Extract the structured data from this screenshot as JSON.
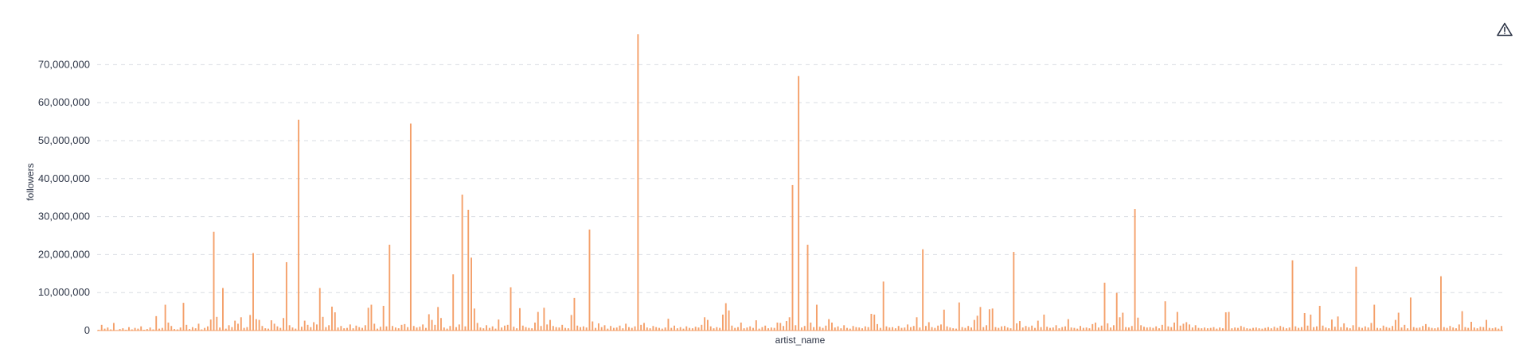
{
  "chart_data": {
    "type": "bar",
    "title": "",
    "xlabel": "artist_name",
    "ylabel": "followers",
    "ylim": [
      0,
      78000000
    ],
    "yticks": [
      0,
      10000000,
      20000000,
      30000000,
      40000000,
      50000000,
      60000000,
      70000000
    ],
    "ytick_labels": [
      "0",
      "10,000,000",
      "20,000,000",
      "30,000,000",
      "40,000,000",
      "50,000,000",
      "60,000,000",
      "70,000,000"
    ],
    "grid": true,
    "bar_color": "#f4a06a",
    "x_tick_labels_shown": false,
    "values": [
      200000,
      1500000,
      500000,
      800000,
      300000,
      2000000,
      100000,
      400000,
      600000,
      200000,
      900000,
      300000,
      700000,
      500000,
      1100000,
      200000,
      400000,
      800000,
      300000,
      3800000,
      500000,
      700000,
      6800000,
      2100000,
      1200000,
      400000,
      300000,
      800000,
      7300000,
      1500000,
      400000,
      900000,
      600000,
      1800000,
      300000,
      700000,
      1100000,
      2900000,
      26000000,
      3600000,
      800000,
      11200000,
      500000,
      1400000,
      900000,
      2600000,
      1800000,
      3500000,
      700000,
      900000,
      4100000,
      20400000,
      3000000,
      2800000,
      1200000,
      600000,
      500000,
      2700000,
      1800000,
      1100000,
      700000,
      3300000,
      18000000,
      1400000,
      800000,
      500000,
      55500000,
      1000000,
      2600000,
      1500000,
      900000,
      2200000,
      1600000,
      11200000,
      3600000,
      900000,
      1400000,
      6300000,
      4800000,
      800000,
      1200000,
      600000,
      700000,
      1600000,
      600000,
      1300000,
      900000,
      700000,
      1400000,
      6000000,
      6800000,
      1800000,
      500000,
      1000000,
      6500000,
      1100000,
      22600000,
      1200000,
      800000,
      600000,
      1500000,
      1700000,
      900000,
      54500000,
      1200000,
      800000,
      1000000,
      1600000,
      700000,
      4300000,
      2800000,
      1500000,
      6200000,
      3300000,
      800000,
      500000,
      1200000,
      14800000,
      900000,
      1600000,
      35800000,
      1100000,
      31800000,
      19200000,
      5800000,
      2000000,
      800000,
      600000,
      1400000,
      700000,
      1100000,
      500000,
      2900000,
      800000,
      1300000,
      1500000,
      11400000,
      1000000,
      600000,
      5900000,
      1300000,
      900000,
      700000,
      600000,
      2100000,
      4900000,
      1200000,
      6000000,
      1600000,
      2800000,
      1200000,
      900000,
      800000,
      1500000,
      700000,
      600000,
      4100000,
      8600000,
      1300000,
      900000,
      1100000,
      800000,
      26600000,
      2400000,
      700000,
      1900000,
      900000,
      1400000,
      500000,
      1200000,
      700000,
      800000,
      1300000,
      600000,
      1800000,
      900000,
      700000,
      1100000,
      78000000,
      1500000,
      2000000,
      800000,
      600000,
      1200000,
      900000,
      700000,
      500000,
      800000,
      3100000,
      700000,
      1300000,
      600000,
      900000,
      500000,
      1100000,
      700000,
      600000,
      1000000,
      800000,
      1500000,
      3500000,
      2800000,
      1100000,
      600000,
      900000,
      700000,
      4200000,
      7200000,
      5300000,
      1300000,
      700000,
      900000,
      2100000,
      600000,
      800000,
      1100000,
      700000,
      2700000,
      500000,
      900000,
      1300000,
      600000,
      800000,
      700000,
      2100000,
      2000000,
      1200000,
      2500000,
      3500000,
      38300000,
      1400000,
      67000000,
      800000,
      1200000,
      22600000,
      2100000,
      900000,
      6800000,
      1000000,
      700000,
      1300000,
      3000000,
      2100000,
      800000,
      1100000,
      600000,
      1400000,
      700000,
      500000,
      1200000,
      900000,
      800000,
      600000,
      1100000,
      900000,
      4400000,
      4200000,
      1700000,
      700000,
      12900000,
      1100000,
      800000,
      900000,
      600000,
      1200000,
      700000,
      800000,
      1600000,
      900000,
      1200000,
      3500000,
      800000,
      21400000,
      1200000,
      2200000,
      900000,
      700000,
      1300000,
      1600000,
      5500000,
      1100000,
      800000,
      600000,
      500000,
      7400000,
      900000,
      700000,
      1200000,
      800000,
      2800000,
      3900000,
      6200000,
      900000,
      1400000,
      5600000,
      5800000,
      900000,
      700000,
      1100000,
      1200000,
      800000,
      600000,
      20700000,
      1900000,
      2500000,
      800000,
      1200000,
      900000,
      1300000,
      700000,
      2600000,
      900000,
      4200000,
      1000000,
      700000,
      800000,
      1400000,
      600000,
      900000,
      1100000,
      3000000,
      800000,
      700000,
      500000,
      1200000,
      700000,
      800000,
      600000,
      1700000,
      2100000,
      800000,
      1300000,
      12600000,
      1900000,
      800000,
      1400000,
      9900000,
      3500000,
      4700000,
      900000,
      800000,
      1200000,
      32000000,
      3400000,
      1400000,
      1000000,
      800000,
      900000,
      700000,
      1100000,
      600000,
      1500000,
      7700000,
      1100000,
      900000,
      2100000,
      4900000,
      1300000,
      1800000,
      2200000,
      1600000,
      800000,
      1400000,
      700000,
      600000,
      800000,
      600000,
      700000,
      900000,
      500000,
      800000,
      600000,
      4800000,
      4900000,
      600000,
      800000,
      700000,
      1200000,
      900000,
      600000,
      500000,
      700000,
      800000,
      600000,
      500000,
      700000,
      900000,
      600000,
      1000000,
      700000,
      1200000,
      900000,
      600000,
      800000,
      18500000,
      1100000,
      700000,
      900000,
      4600000,
      1300000,
      4200000,
      900000,
      1100000,
      6500000,
      1300000,
      800000,
      600000,
      2900000,
      1000000,
      3700000,
      900000,
      1900000,
      800000,
      600000,
      1400000,
      16800000,
      900000,
      700000,
      1100000,
      800000,
      2000000,
      6800000,
      700000,
      600000,
      1300000,
      900000,
      700000,
      1200000,
      2800000,
      4700000,
      800000,
      1500000,
      600000,
      8700000,
      900000,
      700000,
      800000,
      1200000,
      1700000,
      900000,
      700000,
      600000,
      800000,
      14300000,
      900000,
      700000,
      1200000,
      800000,
      600000,
      1600000,
      5100000,
      900000,
      700000,
      2300000,
      800000,
      600000,
      1000000,
      900000,
      2800000,
      700000,
      600000,
      800000,
      500000,
      1200000
    ]
  }
}
